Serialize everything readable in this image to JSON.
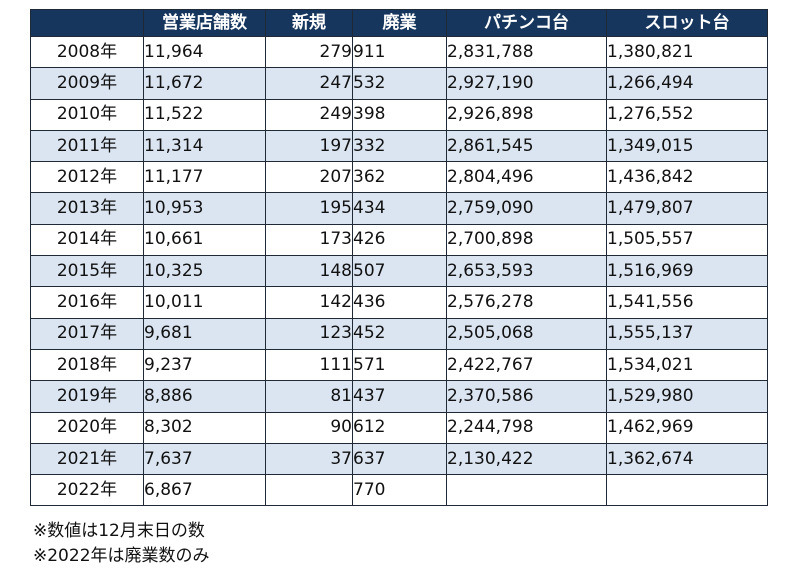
{
  "table": {
    "headers": [
      "",
      "営業店舗数",
      "新規",
      "廃業",
      "パチンコ台",
      "スロット台"
    ],
    "rows": [
      {
        "year": "2008年",
        "stores": "11,964",
        "new": "279",
        "closed": "911",
        "pachinko": "2,831,788",
        "slot": "1,380,821"
      },
      {
        "year": "2009年",
        "stores": "11,672",
        "new": "247",
        "closed": "532",
        "pachinko": "2,927,190",
        "slot": "1,266,494"
      },
      {
        "year": "2010年",
        "stores": "11,522",
        "new": "249",
        "closed": "398",
        "pachinko": "2,926,898",
        "slot": "1,276,552"
      },
      {
        "year": "2011年",
        "stores": "11,314",
        "new": "197",
        "closed": "332",
        "pachinko": "2,861,545",
        "slot": "1,349,015"
      },
      {
        "year": "2012年",
        "stores": "11,177",
        "new": "207",
        "closed": "362",
        "pachinko": "2,804,496",
        "slot": "1,436,842"
      },
      {
        "year": "2013年",
        "stores": "10,953",
        "new": "195",
        "closed": "434",
        "pachinko": "2,759,090",
        "slot": "1,479,807"
      },
      {
        "year": "2014年",
        "stores": "10,661",
        "new": "173",
        "closed": "426",
        "pachinko": "2,700,898",
        "slot": "1,505,557"
      },
      {
        "year": "2015年",
        "stores": "10,325",
        "new": "148",
        "closed": "507",
        "pachinko": "2,653,593",
        "slot": "1,516,969"
      },
      {
        "year": "2016年",
        "stores": "10,011",
        "new": "142",
        "closed": "436",
        "pachinko": "2,576,278",
        "slot": "1,541,556"
      },
      {
        "year": "2017年",
        "stores": "9,681",
        "new": "123",
        "closed": "452",
        "pachinko": "2,505,068",
        "slot": "1,555,137"
      },
      {
        "year": "2018年",
        "stores": "9,237",
        "new": "111",
        "closed": "571",
        "pachinko": "2,422,767",
        "slot": "1,534,021"
      },
      {
        "year": "2019年",
        "stores": "8,886",
        "new": "81",
        "closed": "437",
        "pachinko": "2,370,586",
        "slot": "1,529,980"
      },
      {
        "year": "2020年",
        "stores": "8,302",
        "new": "90",
        "closed": "612",
        "pachinko": "2,244,798",
        "slot": "1,462,969"
      },
      {
        "year": "2021年",
        "stores": "7,637",
        "new": "37",
        "closed": "637",
        "pachinko": "2,130,422",
        "slot": "1,362,674"
      },
      {
        "year": "2022年",
        "stores": "6,867",
        "new": "",
        "closed": "770",
        "pachinko": "",
        "slot": ""
      }
    ]
  },
  "notes": [
    "※数値は12月末日の数",
    "※2022年は廃業数のみ"
  ],
  "colors": {
    "header_bg": "#17365d",
    "header_text": "#ffffff",
    "row_alt_bg": "#dbe5f1",
    "row_bg": "#ffffff",
    "border": "#1f2a36"
  }
}
